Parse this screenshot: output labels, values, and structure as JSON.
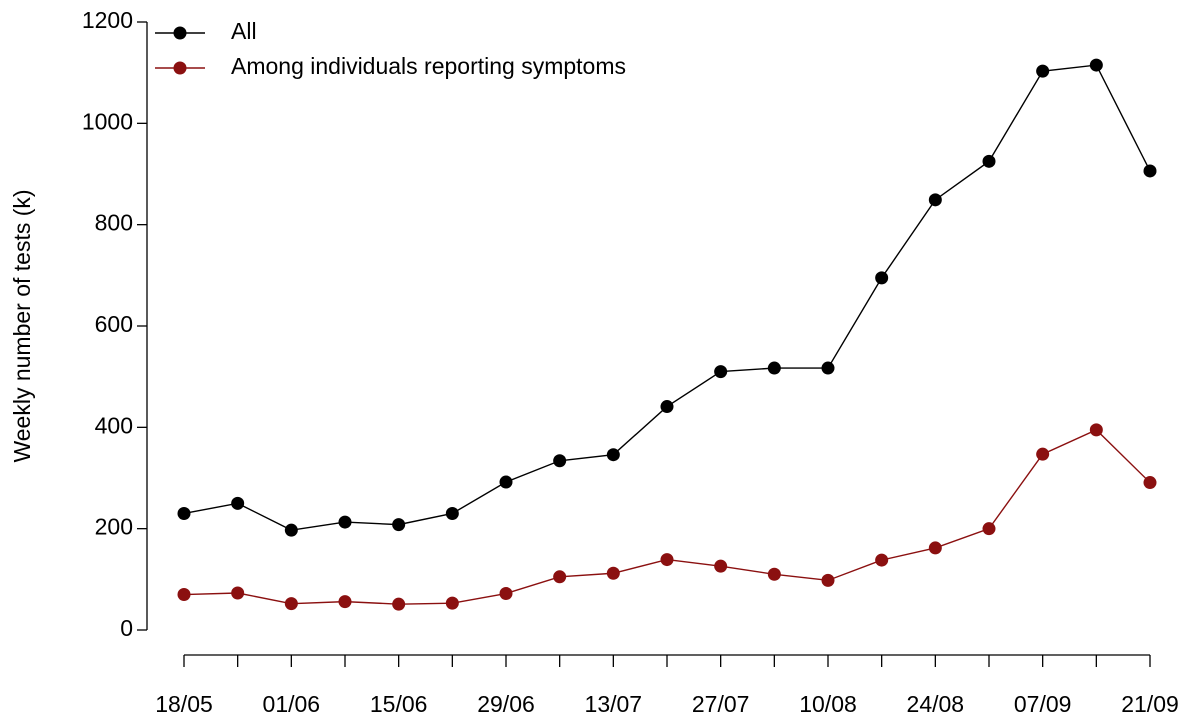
{
  "chart_data": {
    "type": "line",
    "y_label": "Weekly number of tests (k)",
    "categories": [
      "18/05",
      null,
      "01/06",
      null,
      "15/06",
      null,
      "29/06",
      null,
      "13/07",
      null,
      "27/07",
      null,
      "10/08",
      null,
      "24/08",
      null,
      "07/09",
      null,
      "21/09"
    ],
    "series": [
      {
        "name": "All",
        "color": "#000000",
        "values": [
          230,
          250,
          197,
          213,
          208,
          230,
          292,
          334,
          346,
          441,
          510,
          517,
          517,
          695,
          849,
          925,
          1103,
          1115,
          906
        ]
      },
      {
        "name": "Among individuals reporting symptoms",
        "color": "#8b1010",
        "values": [
          70,
          73,
          52,
          56,
          51,
          53,
          72,
          105,
          112,
          139,
          126,
          110,
          98,
          138,
          162,
          200,
          347,
          395,
          291
        ]
      }
    ],
    "ylim": [
      0,
      1200
    ],
    "yticks": [
      0,
      200,
      400,
      600,
      800,
      1000,
      1200
    ],
    "legend": "top-left",
    "grid": false
  }
}
